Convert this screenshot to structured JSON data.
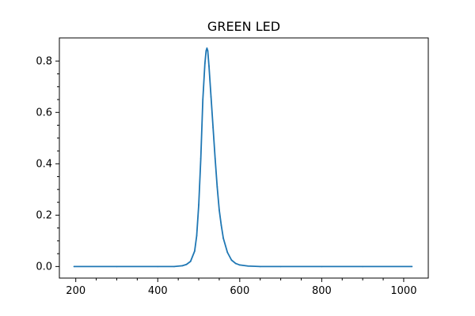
{
  "chart_data": {
    "type": "line",
    "title": "GREEN LED",
    "xlabel": "",
    "ylabel": "",
    "xlim": [
      160,
      1060
    ],
    "ylim": [
      -0.045,
      0.89
    ],
    "x_ticks": [
      200,
      400,
      600,
      800,
      1000
    ],
    "y_ticks": [
      0.0,
      0.2,
      0.4,
      0.6,
      0.8
    ],
    "x_tick_labels": [
      "200",
      "400",
      "600",
      "800",
      "1000"
    ],
    "y_tick_labels": [
      "0.0",
      "0.2",
      "0.4",
      "0.6",
      "0.8"
    ],
    "grid": false,
    "minor_ticks": true,
    "series": [
      {
        "color": "#1f77b4",
        "x": [
          196,
          300,
          400,
          440,
          460,
          470,
          480,
          490,
          495,
          500,
          505,
          510,
          515,
          518,
          520,
          522,
          525,
          530,
          535,
          540,
          545,
          550,
          555,
          560,
          570,
          580,
          590,
          600,
          620,
          650,
          700,
          800,
          900,
          1020
        ],
        "y": [
          0.0,
          0.0,
          0.0,
          0.0,
          0.003,
          0.008,
          0.02,
          0.06,
          0.12,
          0.24,
          0.42,
          0.65,
          0.79,
          0.84,
          0.85,
          0.84,
          0.78,
          0.66,
          0.54,
          0.42,
          0.31,
          0.22,
          0.16,
          0.11,
          0.055,
          0.025,
          0.012,
          0.006,
          0.002,
          0.0,
          0.0,
          0.0,
          0.0,
          0.0
        ]
      }
    ]
  }
}
